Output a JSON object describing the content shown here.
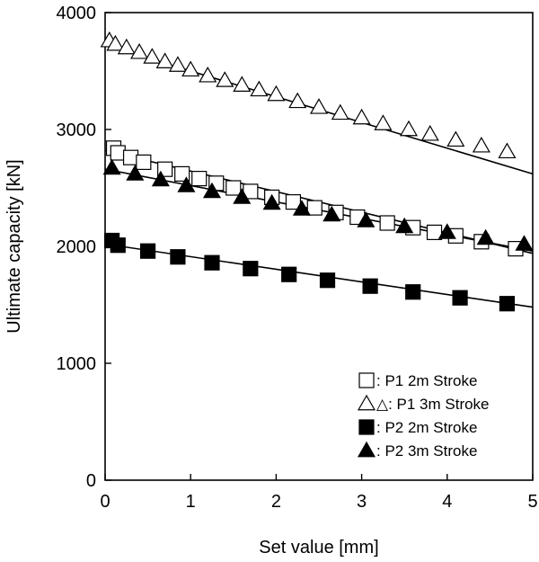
{
  "chart_data": {
    "type": "scatter",
    "xlabel": "Set value [mm]",
    "ylabel": "Ultimate capacity [kN]",
    "xlim": [
      0,
      5
    ],
    "ylim": [
      0,
      4000
    ],
    "xticks": [
      "0",
      "1",
      "2",
      "3",
      "4",
      "5"
    ],
    "yticks": [
      "0",
      "1000",
      "2000",
      "3000",
      "4000"
    ],
    "grid": false,
    "legend_position": "bottom-right",
    "series": [
      {
        "name": ": P1 2m Stroke",
        "marker": "square-open",
        "x": [
          0.1,
          0.15,
          0.3,
          0.45,
          0.7,
          0.9,
          1.1,
          1.3,
          1.5,
          1.7,
          1.95,
          2.2,
          2.45,
          2.7,
          2.95,
          3.3,
          3.6,
          3.85,
          4.1,
          4.4,
          4.8
        ],
        "y": [
          2840,
          2800,
          2760,
          2720,
          2660,
          2620,
          2580,
          2540,
          2500,
          2470,
          2420,
          2380,
          2330,
          2290,
          2250,
          2200,
          2160,
          2120,
          2090,
          2040,
          1980
        ],
        "fit": [
          [
            0,
            2820
          ],
          [
            5,
            1940
          ]
        ]
      },
      {
        "name": "△: P1 3m Stroke",
        "marker": "triangle-open",
        "x": [
          0.05,
          0.12,
          0.25,
          0.4,
          0.55,
          0.7,
          0.85,
          1.0,
          1.2,
          1.4,
          1.6,
          1.8,
          2.0,
          2.25,
          2.5,
          2.75,
          3.0,
          3.25,
          3.55,
          3.8,
          4.1,
          4.4,
          4.7
        ],
        "y": [
          3760,
          3730,
          3700,
          3660,
          3620,
          3580,
          3550,
          3510,
          3460,
          3420,
          3380,
          3340,
          3300,
          3240,
          3190,
          3140,
          3100,
          3050,
          3000,
          2960,
          2910,
          2860,
          2810
        ],
        "fit": [
          [
            0,
            3720
          ],
          [
            5,
            2620
          ]
        ]
      },
      {
        "name": ": P2 2m Stroke",
        "marker": "square-filled",
        "x": [
          0.08,
          0.15,
          0.5,
          0.85,
          1.25,
          1.7,
          2.15,
          2.6,
          3.1,
          3.6,
          4.15,
          4.7
        ],
        "y": [
          2050,
          2010,
          1960,
          1910,
          1860,
          1810,
          1760,
          1710,
          1660,
          1610,
          1560,
          1510
        ],
        "fit": [
          [
            0,
            2020
          ],
          [
            5,
            1480
          ]
        ]
      },
      {
        "name": ": P2 3m Stroke",
        "marker": "triangle-filled",
        "x": [
          0.08,
          0.35,
          0.65,
          0.95,
          1.25,
          1.6,
          1.95,
          2.3,
          2.65,
          3.05,
          3.5,
          4.0,
          4.45,
          4.9
        ],
        "y": [
          2670,
          2620,
          2570,
          2520,
          2470,
          2420,
          2370,
          2320,
          2270,
          2220,
          2170,
          2120,
          2070,
          2020
        ],
        "fit": [
          [
            0,
            2660
          ],
          [
            5,
            1960
          ]
        ]
      }
    ]
  }
}
